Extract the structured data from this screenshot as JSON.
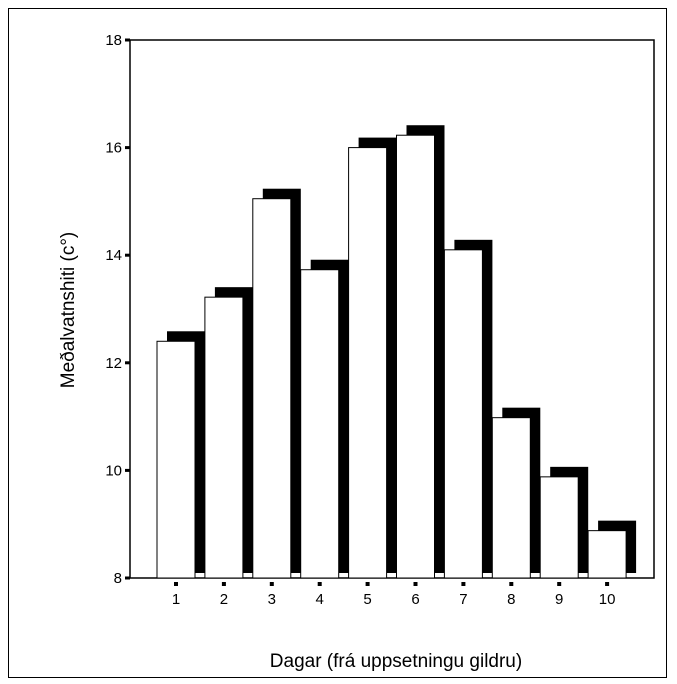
{
  "chart_data": {
    "type": "bar",
    "title": "",
    "xlabel": "Dagar (frá uppsetningu gildru)",
    "ylabel": "Meðalvatnshiti (c°)",
    "categories": [
      "1",
      "2",
      "3",
      "4",
      "5",
      "6",
      "7",
      "8",
      "9",
      "10"
    ],
    "values": [
      12.4,
      13.22,
      15.05,
      13.73,
      16.0,
      16.23,
      14.1,
      10.98,
      9.88,
      8.88
    ],
    "ylim": [
      8,
      18
    ],
    "yticks": [
      "8",
      "10",
      "12",
      "14",
      "16",
      "18"
    ],
    "grid": false,
    "legend": "none",
    "bar_style": "white fill with thick black drop shadow",
    "colors": {
      "bar_fill": "#ffffff",
      "bar_shadow": "#000000",
      "axis": "#000000"
    }
  }
}
